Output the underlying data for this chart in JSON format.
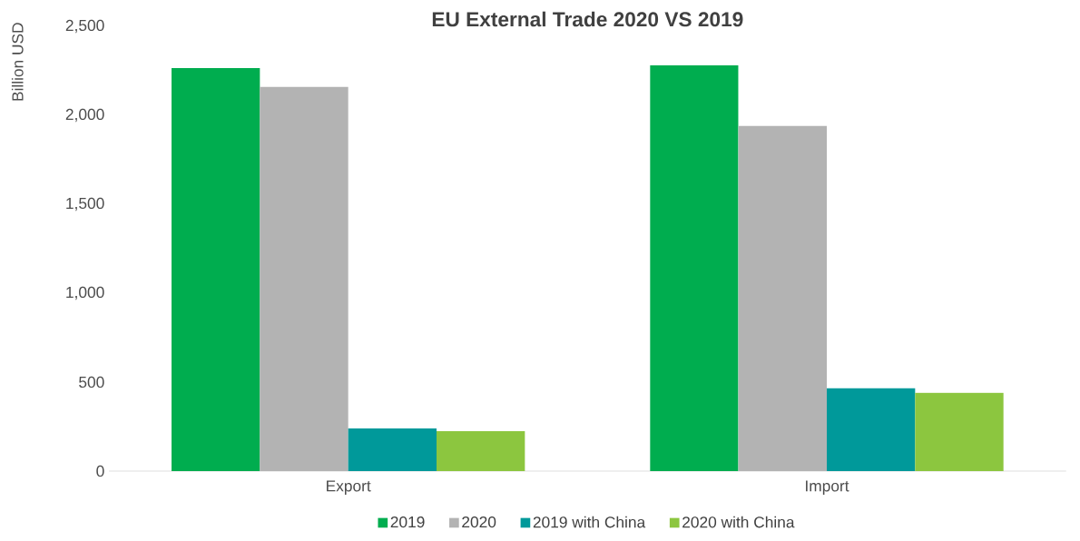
{
  "chart_data": {
    "type": "bar",
    "title": "EU External Trade 2020 VS 2019",
    "ylabel": "Billion USD",
    "categories": [
      "Export",
      "Import"
    ],
    "series": [
      {
        "name": "2019",
        "color": "#00ad4f",
        "values": [
          2265,
          2280
        ]
      },
      {
        "name": "2020",
        "color": "#b3b3b3",
        "values": [
          2160,
          1940
        ]
      },
      {
        "name": "2019 with China",
        "color": "#00999a",
        "values": [
          240,
          465
        ]
      },
      {
        "name": "2020 with China",
        "color": "#8cc63f",
        "values": [
          225,
          440
        ]
      }
    ],
    "ylim": [
      0,
      2500
    ],
    "yticks": [
      {
        "value": 0,
        "label": "0"
      },
      {
        "value": 500,
        "label": "500"
      },
      {
        "value": 1000,
        "label": "1,000"
      },
      {
        "value": 1500,
        "label": "1,500"
      },
      {
        "value": 2000,
        "label": "2,000"
      },
      {
        "value": 2500,
        "label": "2,500"
      }
    ],
    "grid": false,
    "legend": "bottom"
  }
}
